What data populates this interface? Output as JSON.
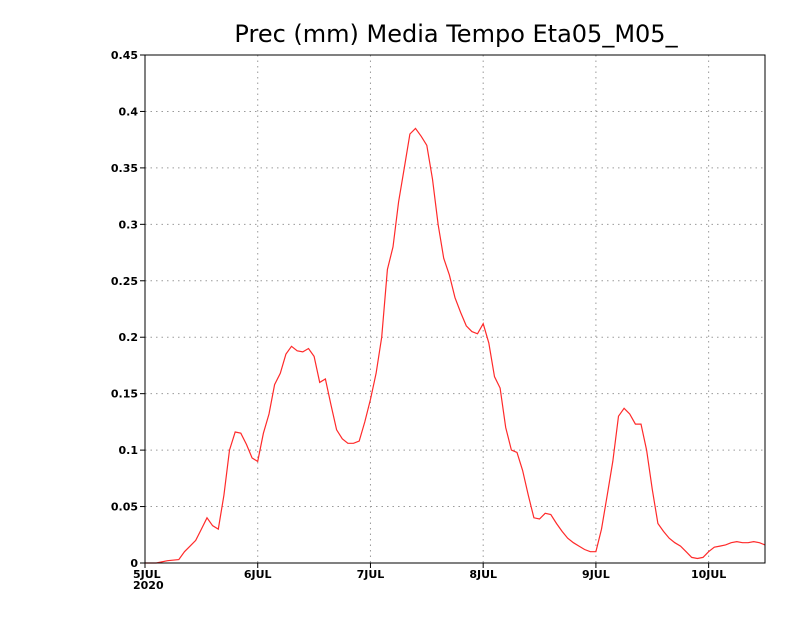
{
  "chart_data": {
    "type": "line",
    "title": "Prec (mm) Media Tempo Eta05_M05_",
    "xlabel": "",
    "ylabel": "",
    "xlim": [
      0,
      5.5
    ],
    "ylim": [
      0,
      0.45
    ],
    "grid": true,
    "x_ticks": [
      {
        "x": 0,
        "label": "5JUL",
        "sublabel": "2020"
      },
      {
        "x": 1,
        "label": "6JUL"
      },
      {
        "x": 2,
        "label": "7JUL"
      },
      {
        "x": 3,
        "label": "8JUL"
      },
      {
        "x": 4,
        "label": "9JUL"
      },
      {
        "x": 5,
        "label": "10JUL"
      }
    ],
    "y_ticks": [
      "0",
      "0.05",
      "0.1",
      "0.15",
      "0.2",
      "0.25",
      "0.3",
      "0.35",
      "0.4",
      "0.45"
    ],
    "series": [
      {
        "color": "#ff2a2a",
        "x": [
          0,
          0.1,
          0.2,
          0.3,
          0.35,
          0.4,
          0.45,
          0.5,
          0.55,
          0.6,
          0.65,
          0.7,
          0.75,
          0.8,
          0.85,
          0.9,
          0.95,
          1.0,
          1.05,
          1.1,
          1.15,
          1.2,
          1.25,
          1.3,
          1.35,
          1.4,
          1.45,
          1.5,
          1.55,
          1.6,
          1.65,
          1.7,
          1.75,
          1.8,
          1.85,
          1.9,
          1.95,
          2.0,
          2.05,
          2.1,
          2.15,
          2.2,
          2.25,
          2.3,
          2.35,
          2.4,
          2.45,
          2.5,
          2.55,
          2.6,
          2.65,
          2.7,
          2.75,
          2.8,
          2.85,
          2.9,
          2.95,
          3.0,
          3.05,
          3.1,
          3.15,
          3.2,
          3.25,
          3.3,
          3.35,
          3.4,
          3.45,
          3.5,
          3.55,
          3.6,
          3.65,
          3.7,
          3.75,
          3.8,
          3.85,
          3.9,
          3.95,
          4.0,
          4.05,
          4.1,
          4.15,
          4.2,
          4.25,
          4.3,
          4.35,
          4.4,
          4.45,
          4.5,
          4.55,
          4.6,
          4.65,
          4.7,
          4.75,
          4.8,
          4.85,
          4.9,
          4.95,
          5.0,
          5.05,
          5.1,
          5.15,
          5.2,
          5.25,
          5.3,
          5.35,
          5.4,
          5.45,
          5.5
        ],
        "y": [
          0.0,
          0.0,
          0.002,
          0.003,
          0.01,
          0.015,
          0.02,
          0.03,
          0.04,
          0.033,
          0.03,
          0.06,
          0.1,
          0.116,
          0.115,
          0.105,
          0.093,
          0.09,
          0.115,
          0.132,
          0.158,
          0.168,
          0.185,
          0.192,
          0.188,
          0.187,
          0.19,
          0.183,
          0.16,
          0.163,
          0.14,
          0.118,
          0.11,
          0.106,
          0.106,
          0.108,
          0.125,
          0.145,
          0.168,
          0.2,
          0.26,
          0.28,
          0.32,
          0.35,
          0.38,
          0.385,
          0.378,
          0.37,
          0.34,
          0.3,
          0.27,
          0.255,
          0.235,
          0.222,
          0.21,
          0.205,
          0.203,
          0.212,
          0.195,
          0.165,
          0.155,
          0.12,
          0.1,
          0.098,
          0.082,
          0.06,
          0.04,
          0.039,
          0.044,
          0.043,
          0.035,
          0.028,
          0.022,
          0.018,
          0.015,
          0.012,
          0.01,
          0.01,
          0.03,
          0.06,
          0.09,
          0.13,
          0.137,
          0.132,
          0.123,
          0.123,
          0.1,
          0.065,
          0.035,
          0.028,
          0.022,
          0.018,
          0.015,
          0.01,
          0.005,
          0.004,
          0.005,
          0.01,
          0.014,
          0.015,
          0.016,
          0.018,
          0.019,
          0.018,
          0.018,
          0.019,
          0.018,
          0.016
        ]
      }
    ]
  }
}
